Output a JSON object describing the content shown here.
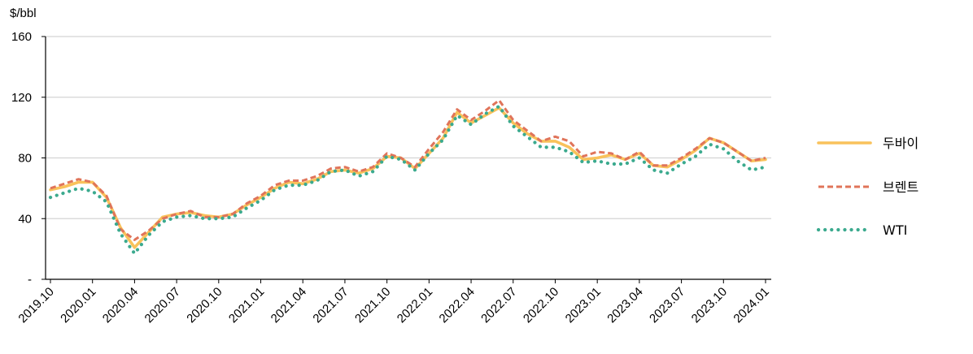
{
  "chart_data": {
    "type": "line",
    "ylabel": "$/bbl",
    "ylim": [
      0,
      160
    ],
    "yticks": [
      {
        "value": 0,
        "label": "-"
      },
      {
        "value": 40,
        "label": "40"
      },
      {
        "value": 80,
        "label": "80"
      },
      {
        "value": 120,
        "label": "120"
      },
      {
        "value": 160,
        "label": "160"
      }
    ],
    "grid": true,
    "legend_position": "right",
    "x": [
      "2019.10",
      "2019.11",
      "2019.12",
      "2020.01",
      "2020.02",
      "2020.03",
      "2020.04",
      "2020.05",
      "2020.06",
      "2020.07",
      "2020.08",
      "2020.09",
      "2020.10",
      "2020.11",
      "2020.12",
      "2021.01",
      "2021.02",
      "2021.03",
      "2021.04",
      "2021.05",
      "2021.06",
      "2021.07",
      "2021.08",
      "2021.09",
      "2021.10",
      "2021.11",
      "2021.12",
      "2022.01",
      "2022.02",
      "2022.03",
      "2022.04",
      "2022.05",
      "2022.06",
      "2022.07",
      "2022.08",
      "2022.09",
      "2022.10",
      "2022.11",
      "2022.12",
      "2023.01",
      "2023.02",
      "2023.03",
      "2023.04",
      "2023.05",
      "2023.06",
      "2023.07",
      "2023.08",
      "2023.09",
      "2023.10",
      "2023.11",
      "2023.12",
      "2024.01"
    ],
    "xtick_labels": [
      "2019.10",
      "2020.01",
      "2020.04",
      "2020.07",
      "2020.10",
      "2021.01",
      "2021.04",
      "2021.07",
      "2021.10",
      "2022.01",
      "2022.04",
      "2022.07",
      "2022.10",
      "2023.01",
      "2023.04",
      "2023.07",
      "2023.10",
      "2024.01"
    ],
    "series": [
      {
        "name": "두바이",
        "color": "#F9C25B",
        "style": "solid",
        "values": [
          59,
          61,
          64,
          64,
          54,
          34,
          21,
          31,
          41,
          43,
          44,
          42,
          41,
          43,
          49,
          54,
          60,
          64,
          63,
          66,
          71,
          72,
          70,
          73,
          81,
          80,
          73,
          83,
          93,
          110,
          103,
          108,
          113,
          103,
          96,
          91,
          91,
          87,
          79,
          80,
          82,
          79,
          83,
          75,
          74,
          79,
          85,
          93,
          90,
          84,
          78,
          79
        ]
      },
      {
        "name": "브렌트",
        "color": "#E0745A",
        "style": "dashed",
        "values": [
          60,
          63,
          66,
          64,
          55,
          33,
          26,
          32,
          40,
          43,
          45,
          41,
          41,
          43,
          50,
          55,
          62,
          65,
          65,
          68,
          73,
          74,
          71,
          74,
          83,
          80,
          74,
          86,
          97,
          112,
          105,
          111,
          118,
          105,
          98,
          91,
          94,
          91,
          81,
          84,
          83,
          79,
          84,
          75,
          75,
          80,
          86,
          93,
          90,
          84,
          78,
          80
        ]
      },
      {
        "name": "WTI",
        "color": "#3BAA8E",
        "style": "dotted",
        "values": [
          54,
          57,
          60,
          58,
          51,
          30,
          17,
          29,
          38,
          41,
          42,
          40,
          40,
          41,
          47,
          52,
          59,
          62,
          62,
          65,
          71,
          72,
          68,
          71,
          81,
          79,
          72,
          83,
          92,
          108,
          102,
          109,
          114,
          101,
          94,
          87,
          87,
          84,
          77,
          78,
          76,
          76,
          80,
          72,
          70,
          76,
          81,
          89,
          86,
          78,
          72,
          74
        ]
      }
    ]
  }
}
